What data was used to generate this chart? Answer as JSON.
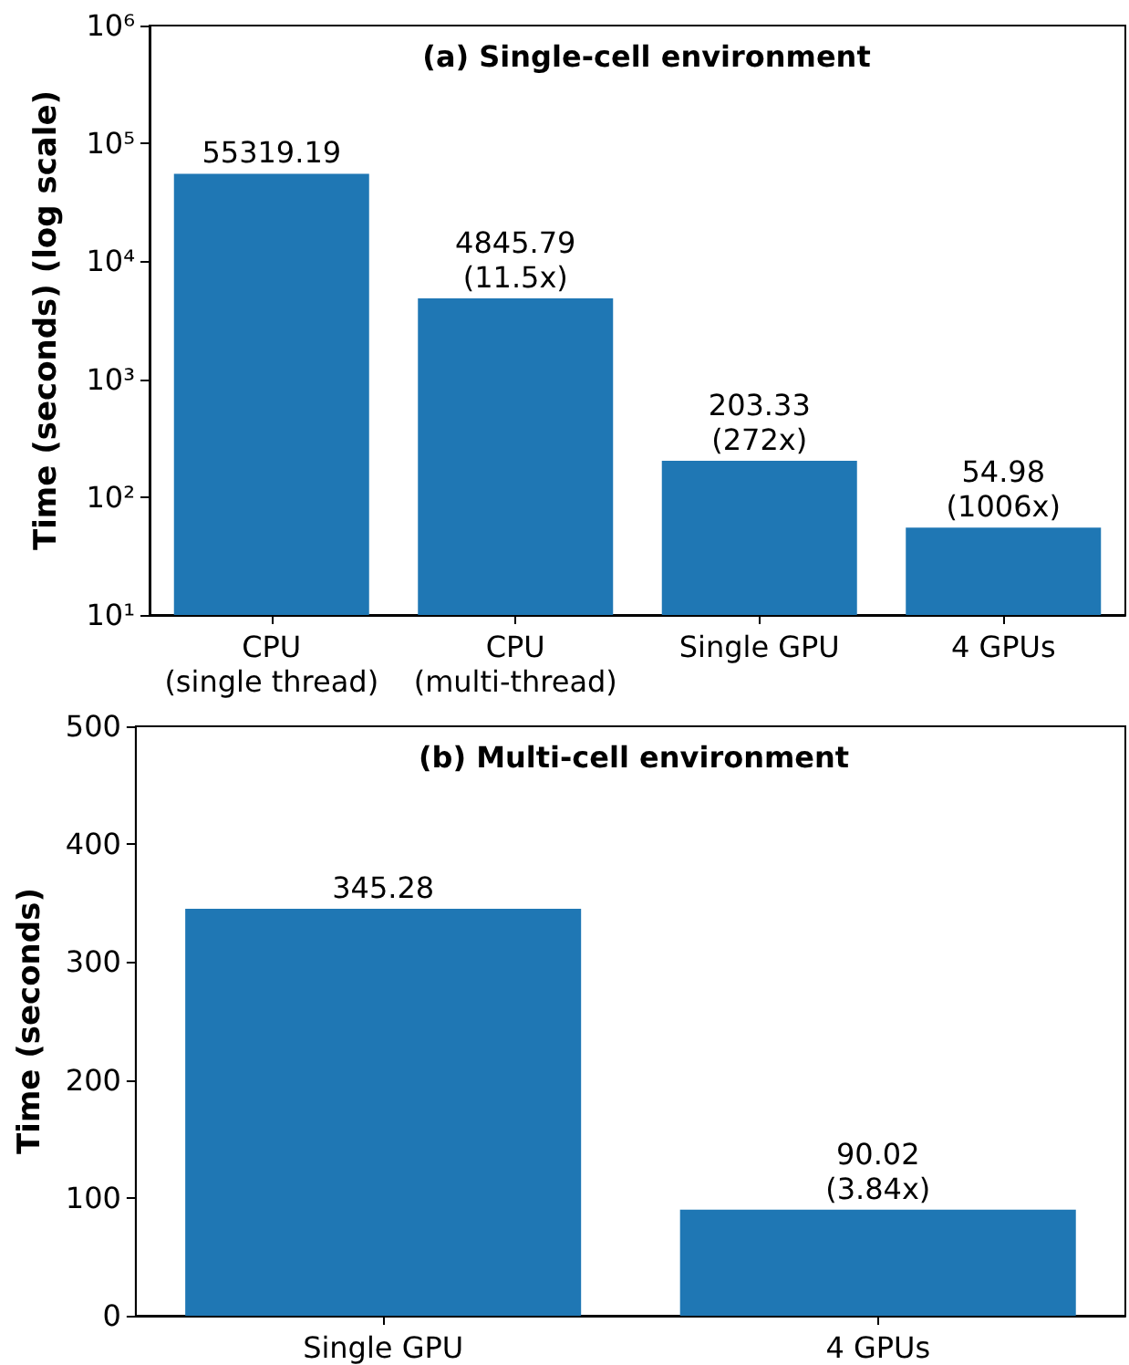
{
  "chart_data": [
    {
      "type": "bar",
      "title": "(a) Single-cell environment",
      "ylabel": "Time (seconds) (log scale)",
      "categories": [
        "CPU\n(single thread)",
        "CPU\n(multi-thread)",
        "Single GPU",
        "4 GPUs"
      ],
      "values": [
        55319.19,
        4845.79,
        203.33,
        54.98
      ],
      "value_labels": [
        "55319.19",
        "4845.79\n(11.5x)",
        "203.33\n(272x)",
        "54.98\n(1006x)"
      ],
      "color": "#1f77b4",
      "log": "y",
      "ylim": [
        10,
        1000000
      ],
      "yticks": [
        {
          "value": 10,
          "label": "10¹"
        },
        {
          "value": 100,
          "label": "10²"
        },
        {
          "value": 1000,
          "label": "10³"
        },
        {
          "value": 10000,
          "label": "10⁴"
        },
        {
          "value": 100000,
          "label": "10⁵"
        },
        {
          "value": 1000000,
          "label": "10⁶"
        }
      ],
      "grid": false
    },
    {
      "type": "bar",
      "title": "(b) Multi-cell environment",
      "ylabel": "Time (seconds)",
      "categories": [
        "Single GPU",
        "4 GPUs"
      ],
      "values": [
        345.28,
        90.02
      ],
      "value_labels": [
        "345.28",
        "90.02\n(3.84x)"
      ],
      "color": "#1f77b4",
      "ylim": [
        0,
        500
      ],
      "yticks": [
        0,
        100,
        200,
        300,
        400,
        500
      ],
      "grid": false
    }
  ]
}
